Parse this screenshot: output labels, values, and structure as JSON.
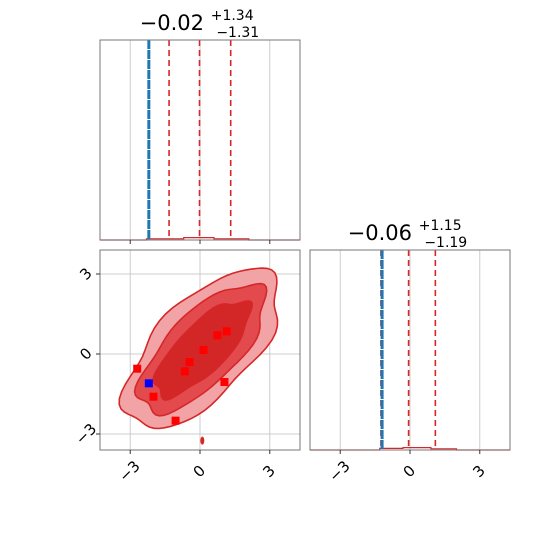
{
  "colors": {
    "accent": "#d62728",
    "truth": "#1f77b4",
    "marker_red": "#ff0000",
    "marker_blue": "#0000ff",
    "grid": "#cccccc",
    "axis": "#777777",
    "contour_levels": [
      "#f2a3a6",
      "#e34a4e",
      "#d32627"
    ]
  },
  "chart_data": [
    {
      "type": "histogram",
      "panel": "marginal-param-1",
      "title_median": "−0.02",
      "title_plus": "+1.34",
      "title_minus": "−1.31",
      "xlim": [
        -4.3,
        4.3
      ],
      "ylim": [
        0,
        1
      ],
      "grid": true,
      "quantiles": [
        -1.33,
        -0.02,
        1.32
      ],
      "truth": -2.2,
      "bins": [
        {
          "x0": -4.3,
          "x1": -2.3,
          "h": 0.0
        },
        {
          "x0": -2.3,
          "x1": -0.7,
          "h": 0.006
        },
        {
          "x0": -0.7,
          "x1": 0.6,
          "h": 0.012
        },
        {
          "x0": 0.6,
          "x1": 2.1,
          "h": 0.006
        },
        {
          "x0": 2.1,
          "x1": 4.3,
          "h": 0.0
        }
      ]
    },
    {
      "type": "histogram",
      "panel": "marginal-param-2",
      "title_median": "−0.06",
      "title_plus": "+1.15",
      "title_minus": "−1.19",
      "xlim": [
        -4.3,
        4.3
      ],
      "ylim": [
        0,
        1
      ],
      "grid": true,
      "quantiles": [
        -1.25,
        -0.06,
        1.09
      ],
      "truth": -1.2,
      "xticks": [
        -3,
        0,
        3
      ],
      "xtick_labels": [
        "−3",
        "0",
        "3"
      ],
      "bins": [
        {
          "x0": -4.3,
          "x1": -1.3,
          "h": 0.0
        },
        {
          "x0": -1.3,
          "x1": -0.3,
          "h": 0.008
        },
        {
          "x0": -0.3,
          "x1": 0.9,
          "h": 0.012
        },
        {
          "x0": 0.9,
          "x1": 2.0,
          "h": 0.006
        },
        {
          "x0": 2.0,
          "x1": 4.3,
          "h": 0.0
        }
      ]
    },
    {
      "type": "contour",
      "panel": "joint-2d",
      "xlim": [
        -4.3,
        4.3
      ],
      "ylim": [
        -3.6,
        3.9
      ],
      "grid": true,
      "xticks": [
        -3,
        0,
        3
      ],
      "xtick_labels": [
        "−3",
        "0",
        "3"
      ],
      "yticks": [
        -3,
        0,
        3
      ],
      "ytick_labels": [
        "−3",
        "0",
        "3"
      ],
      "center": [
        0.1,
        0.2
      ],
      "angle_deg": 40,
      "levels": [
        {
          "a": 4.05,
          "b": 1.9
        },
        {
          "a": 3.35,
          "b": 1.4
        },
        {
          "a": 2.55,
          "b": 0.95
        }
      ],
      "truth": [
        -2.2,
        -1.2
      ],
      "points_red": [
        [
          -2.7,
          -0.55
        ],
        [
          -2.0,
          -1.6
        ],
        [
          -1.05,
          -2.5
        ],
        [
          -0.45,
          -0.3
        ],
        [
          -0.65,
          -0.65
        ],
        [
          0.15,
          0.15
        ],
        [
          0.75,
          0.7
        ],
        [
          1.15,
          0.85
        ],
        [
          1.05,
          -1.05
        ]
      ],
      "point_blue": [
        -2.2,
        -1.1
      ]
    }
  ]
}
